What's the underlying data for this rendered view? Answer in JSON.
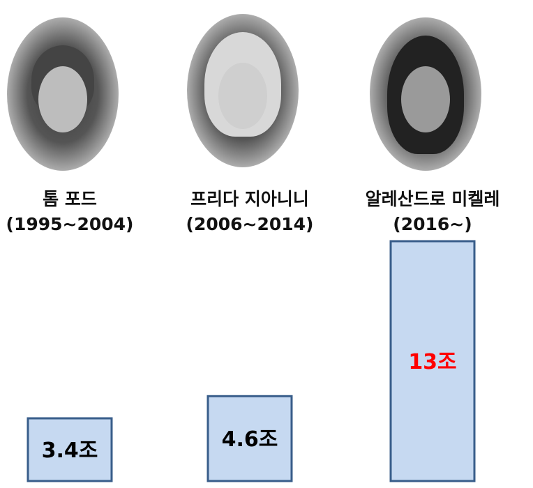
{
  "chart_data": {
    "type": "bar",
    "categories": [
      "톰 포드 (1995~2004)",
      "프리다 지아니니 (2006~2014)",
      "알레산드로 미켈레 (2016~)"
    ],
    "values": [
      3.4,
      4.6,
      13
    ],
    "value_labels": [
      "3.4조",
      "4.6조",
      "13조"
    ],
    "people": [
      {
        "name": "톰 포드",
        "period": "(1995~2004)"
      },
      {
        "name": "프리다 지아니니",
        "period": "(2006~2014)"
      },
      {
        "name": "알레산드로 미켈레",
        "period": "(2016~)"
      }
    ],
    "colors": {
      "bar_fill": "#c6d9f1",
      "bar_stroke": "#385d8a",
      "label": "#000000",
      "highlight_label": "#ff0000"
    },
    "highlight_index": 2,
    "grid": false
  }
}
